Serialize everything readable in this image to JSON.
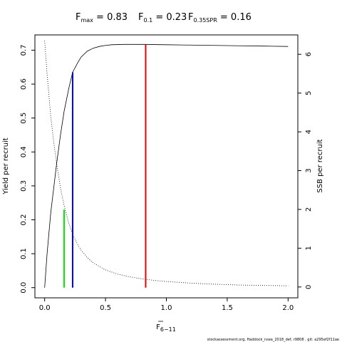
{
  "chart_data": {
    "type": "line",
    "title_parts": [
      {
        "main": "F",
        "sub": "max",
        "value": " = 0.83"
      },
      {
        "main": "F",
        "sub": "0.1",
        "value": " = 0.23"
      },
      {
        "main": "F",
        "sub": "0.35SPR",
        "value": " = 0.16"
      }
    ],
    "xlabel_main": "F",
    "xlabel_sub": "6−11",
    "ylabel_left": "Yield per recruit",
    "ylabel_right": "SSB per recruit",
    "xlim": [
      -0.08,
      2.08
    ],
    "ylim_left": [
      -0.03,
      0.745
    ],
    "ylim_right": [
      -0.28,
      6.5
    ],
    "x_ticks": [
      0.0,
      0.5,
      1.0,
      1.5,
      2.0
    ],
    "x_tick_labels": [
      "0.0",
      "0.5",
      "1.0",
      "1.5",
      "2.0"
    ],
    "y_left_ticks": [
      0.0,
      0.1,
      0.2,
      0.3,
      0.4,
      0.5,
      0.6,
      0.7
    ],
    "y_left_tick_labels": [
      "0.0",
      "0.1",
      "0.2",
      "0.3",
      "0.4",
      "0.5",
      "0.6",
      "0.7"
    ],
    "y_right_ticks": [
      0,
      1,
      2,
      3,
      4,
      5,
      6
    ],
    "y_right_tick_labels": [
      "0",
      "1",
      "2",
      "3",
      "4",
      "5",
      "6"
    ],
    "series": [
      {
        "axis": "left",
        "style": "solid",
        "color": "#000000",
        "x": [
          0.0,
          0.02,
          0.05,
          0.08,
          0.1,
          0.13,
          0.16,
          0.2,
          0.23,
          0.27,
          0.3,
          0.35,
          0.4,
          0.45,
          0.5,
          0.55,
          0.6,
          0.65,
          0.7,
          0.75,
          0.83,
          0.9,
          1.0,
          1.2,
          1.4,
          1.6,
          1.8,
          2.0
        ],
        "values": [
          0.0,
          0.1,
          0.22,
          0.31,
          0.37,
          0.45,
          0.52,
          0.59,
          0.635,
          0.662,
          0.68,
          0.697,
          0.706,
          0.711,
          0.714,
          0.716,
          0.7165,
          0.717,
          0.717,
          0.717,
          0.717,
          0.7165,
          0.716,
          0.715,
          0.714,
          0.713,
          0.712,
          0.711
        ]
      },
      {
        "axis": "right",
        "style": "dotted",
        "color": "#000000",
        "x": [
          0.0,
          0.02,
          0.05,
          0.08,
          0.1,
          0.13,
          0.16,
          0.2,
          0.23,
          0.27,
          0.3,
          0.35,
          0.4,
          0.5,
          0.6,
          0.7,
          0.8,
          0.9,
          1.0,
          1.2,
          1.4,
          1.6,
          1.8,
          2.0
        ],
        "values": [
          6.35,
          5.5,
          4.4,
          3.6,
          3.15,
          2.55,
          2.1,
          1.62,
          1.36,
          1.1,
          0.95,
          0.76,
          0.62,
          0.44,
          0.33,
          0.26,
          0.21,
          0.17,
          0.14,
          0.1,
          0.07,
          0.05,
          0.04,
          0.03
        ]
      }
    ],
    "reference_lines": [
      {
        "x": 0.16,
        "y_top": 0.23,
        "color": "#00ee00"
      },
      {
        "x": 0.23,
        "y_top": 0.635,
        "color": "#0000ee"
      },
      {
        "x": 0.83,
        "y_top": 0.717,
        "color": "#ee0000"
      }
    ],
    "footnote": "stockassessment.org, Haddock_nsea_2018_def, r9808 , git: a295ef2f11ae"
  }
}
